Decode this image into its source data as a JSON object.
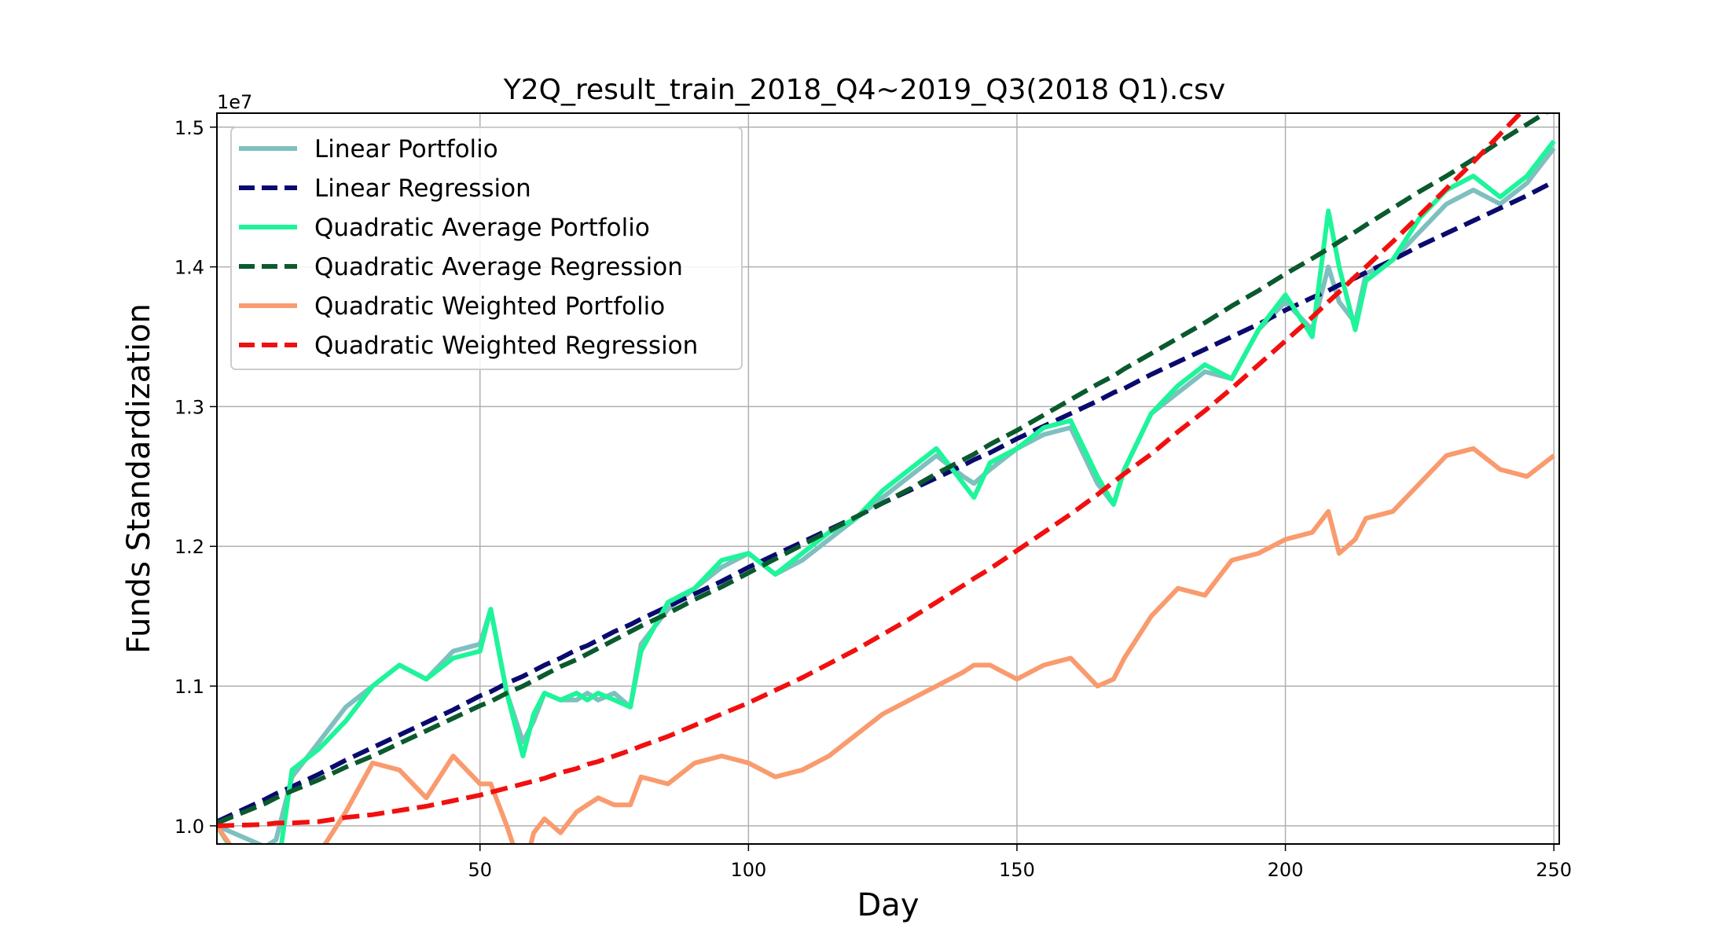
{
  "chart_data": {
    "type": "line",
    "title": "Y2Q_result_train_2018_Q4~2019_Q3(2018 Q1).csv",
    "xlabel": "Day",
    "ylabel": "Funds Standardization",
    "y_offset_label": "1e7",
    "xlim": [
      1,
      251
    ],
    "ylim": [
      9.87,
      15.1
    ],
    "xticks": [
      50,
      100,
      150,
      200,
      250
    ],
    "xtick_labels": [
      "50",
      "100",
      "150",
      "200",
      "250"
    ],
    "yticks": [
      10.0,
      11.0,
      12.0,
      13.0,
      14.0,
      15.0
    ],
    "ytick_labels": [
      "1.0",
      "1.1",
      "1.2",
      "1.3",
      "1.4",
      "1.5"
    ],
    "grid": true,
    "legend_position": "upper-left",
    "x": [
      1,
      10,
      12,
      15,
      20,
      25,
      30,
      35,
      40,
      45,
      50,
      52,
      55,
      58,
      60,
      62,
      65,
      68,
      70,
      72,
      75,
      78,
      80,
      85,
      90,
      95,
      100,
      105,
      110,
      115,
      120,
      125,
      130,
      135,
      140,
      142,
      145,
      150,
      155,
      160,
      165,
      168,
      170,
      175,
      180,
      185,
      190,
      195,
      200,
      205,
      208,
      210,
      213,
      215,
      220,
      225,
      230,
      235,
      240,
      245,
      250
    ],
    "series": [
      {
        "name": "Linear Portfolio",
        "color": "#7fbfbf",
        "dash": "solid",
        "values": [
          10.0,
          9.85,
          9.9,
          10.35,
          10.6,
          10.85,
          11.0,
          11.15,
          11.05,
          11.25,
          11.3,
          11.55,
          10.95,
          10.6,
          10.75,
          10.95,
          10.9,
          10.9,
          10.95,
          10.9,
          10.95,
          10.85,
          11.3,
          11.55,
          11.7,
          11.85,
          11.95,
          11.8,
          11.9,
          12.05,
          12.2,
          12.35,
          12.5,
          12.65,
          12.5,
          12.45,
          12.55,
          12.7,
          12.8,
          12.85,
          12.45,
          12.3,
          12.55,
          12.95,
          13.1,
          13.25,
          13.2,
          13.55,
          13.75,
          13.55,
          14.0,
          13.75,
          13.6,
          13.95,
          14.05,
          14.25,
          14.45,
          14.55,
          14.45,
          14.6,
          14.85
        ]
      },
      {
        "name": "Linear Regression",
        "color": "#0a0a6e",
        "dash": "dashed",
        "values": [
          10.03,
          10.19,
          10.23,
          10.28,
          10.37,
          10.47,
          10.56,
          10.65,
          10.74,
          10.83,
          10.93,
          10.96,
          11.02,
          11.07,
          11.11,
          11.15,
          11.2,
          11.26,
          11.29,
          11.33,
          11.39,
          11.44,
          11.48,
          11.57,
          11.66,
          11.75,
          11.85,
          11.94,
          12.03,
          12.12,
          12.21,
          12.31,
          12.4,
          12.49,
          12.58,
          12.62,
          12.67,
          12.77,
          12.86,
          12.95,
          13.04,
          13.1,
          13.13,
          13.23,
          13.32,
          13.41,
          13.5,
          13.59,
          13.69,
          13.78,
          13.83,
          13.87,
          13.92,
          13.96,
          14.05,
          14.15,
          14.24,
          14.33,
          14.42,
          14.51,
          14.61
        ]
      },
      {
        "name": "Quadratic Average Portfolio",
        "color": "#1ef59a",
        "dash": "solid",
        "values": [
          10.0,
          9.45,
          9.6,
          10.4,
          10.55,
          10.75,
          11.0,
          11.15,
          11.05,
          11.2,
          11.25,
          11.55,
          10.95,
          10.5,
          10.8,
          10.95,
          10.9,
          10.95,
          10.9,
          10.95,
          10.9,
          10.85,
          11.25,
          11.6,
          11.7,
          11.9,
          11.95,
          11.8,
          11.95,
          12.1,
          12.2,
          12.4,
          12.55,
          12.7,
          12.45,
          12.35,
          12.6,
          12.7,
          12.85,
          12.9,
          12.5,
          12.3,
          12.55,
          12.95,
          13.15,
          13.3,
          13.2,
          13.55,
          13.8,
          13.5,
          14.4,
          14.0,
          13.55,
          13.9,
          14.05,
          14.35,
          14.55,
          14.65,
          14.5,
          14.65,
          14.9
        ]
      },
      {
        "name": "Quadratic Average Regression",
        "color": "#0a5a2e",
        "dash": "dashed",
        "values": [
          10.02,
          10.16,
          10.2,
          10.25,
          10.33,
          10.42,
          10.5,
          10.59,
          10.68,
          10.77,
          10.86,
          10.89,
          10.95,
          11.0,
          11.04,
          11.08,
          11.14,
          11.19,
          11.23,
          11.27,
          11.33,
          11.39,
          11.43,
          11.52,
          11.62,
          11.71,
          11.81,
          11.91,
          12.01,
          12.11,
          12.21,
          12.31,
          12.41,
          12.52,
          12.62,
          12.66,
          12.73,
          12.83,
          12.94,
          13.05,
          13.16,
          13.22,
          13.27,
          13.38,
          13.49,
          13.6,
          13.72,
          13.83,
          13.95,
          14.06,
          14.13,
          14.18,
          14.25,
          14.3,
          14.42,
          14.54,
          14.65,
          14.77,
          14.9,
          15.02,
          15.14
        ]
      },
      {
        "name": "Quadratic Weighted Portfolio",
        "color": "#f99b6e",
        "dash": "solid",
        "values": [
          10.0,
          9.5,
          9.65,
          9.6,
          9.8,
          10.1,
          10.45,
          10.4,
          10.2,
          10.5,
          10.3,
          10.3,
          10.0,
          9.65,
          9.95,
          10.05,
          9.95,
          10.1,
          10.15,
          10.2,
          10.15,
          10.15,
          10.35,
          10.3,
          10.45,
          10.5,
          10.45,
          10.35,
          10.4,
          10.5,
          10.65,
          10.8,
          10.9,
          11.0,
          11.1,
          11.15,
          11.15,
          11.05,
          11.15,
          11.2,
          11.0,
          11.05,
          11.2,
          11.5,
          11.7,
          11.65,
          11.9,
          11.95,
          12.05,
          12.1,
          12.25,
          11.95,
          12.05,
          12.2,
          12.25,
          12.45,
          12.65,
          12.7,
          12.55,
          12.5,
          12.65
        ]
      },
      {
        "name": "Quadratic Weighted Regression",
        "color": "#f20f0f",
        "dash": "dashed",
        "values": [
          10.0,
          10.01,
          10.02,
          10.02,
          10.03,
          10.06,
          10.08,
          10.11,
          10.14,
          10.18,
          10.22,
          10.24,
          10.27,
          10.3,
          10.32,
          10.34,
          10.38,
          10.41,
          10.44,
          10.46,
          10.5,
          10.54,
          10.57,
          10.64,
          10.72,
          10.8,
          10.88,
          10.97,
          11.06,
          11.16,
          11.26,
          11.37,
          11.48,
          11.6,
          11.72,
          11.77,
          11.84,
          11.97,
          12.1,
          12.23,
          12.37,
          12.46,
          12.52,
          12.66,
          12.82,
          12.97,
          13.13,
          13.3,
          13.47,
          13.64,
          13.75,
          13.82,
          13.93,
          14.0,
          14.18,
          14.37,
          14.56,
          14.75,
          14.95,
          15.15,
          15.35
        ]
      }
    ]
  }
}
